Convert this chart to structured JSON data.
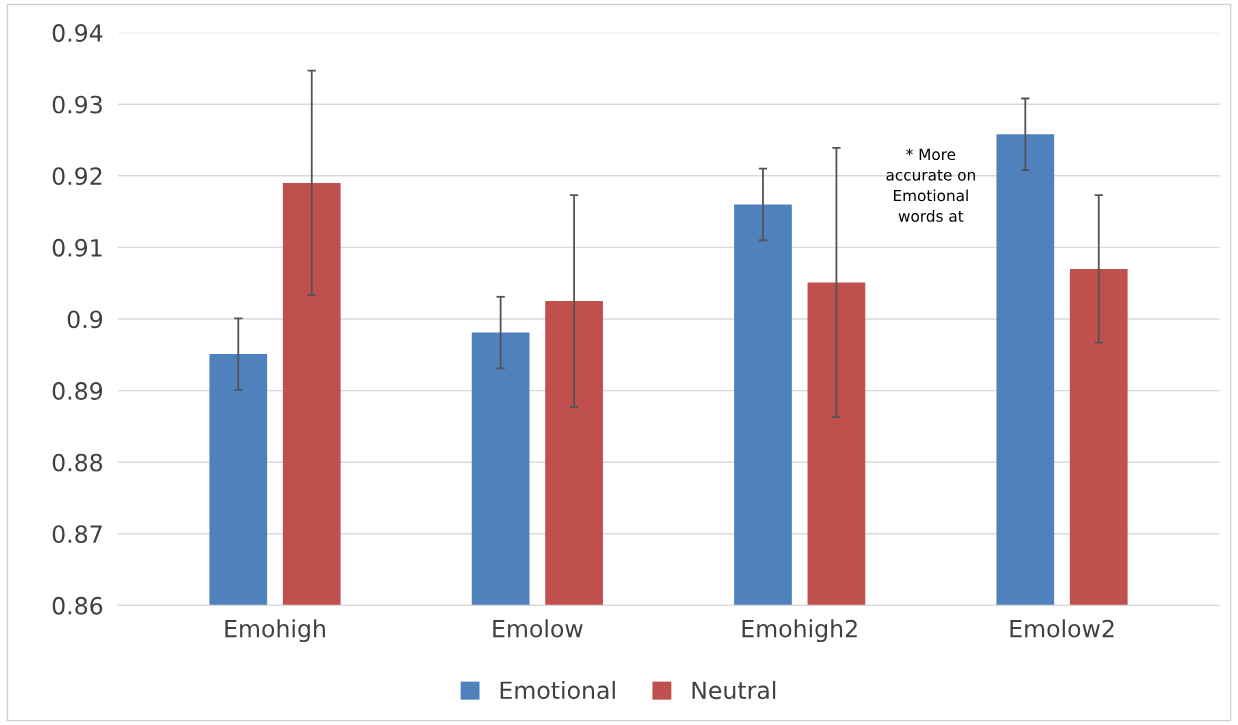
{
  "chart_data": {
    "type": "bar",
    "categories": [
      "Emohigh",
      "Emolow",
      "Emohigh2",
      "Emolow2"
    ],
    "series": [
      {
        "name": "Emotional",
        "color": "#4f81bd",
        "values": [
          0.8951,
          0.8981,
          0.916,
          0.9258
        ],
        "errors": [
          0.005,
          0.005,
          0.005,
          0.005
        ]
      },
      {
        "name": "Neutral",
        "color": "#c0504d",
        "values": [
          0.919,
          0.9025,
          0.9051,
          0.907
        ],
        "errors": [
          0.0157,
          0.0148,
          0.0188,
          0.0103
        ]
      }
    ],
    "ylim": [
      0.86,
      0.94
    ],
    "yticks": [
      0.86,
      0.87,
      0.88,
      0.89,
      0.9,
      0.91,
      0.92,
      0.93,
      0.94
    ],
    "grid": "y",
    "legend": "bottom",
    "annotations": [
      "* More\naccurate on\nEmotional\nwords at"
    ]
  }
}
